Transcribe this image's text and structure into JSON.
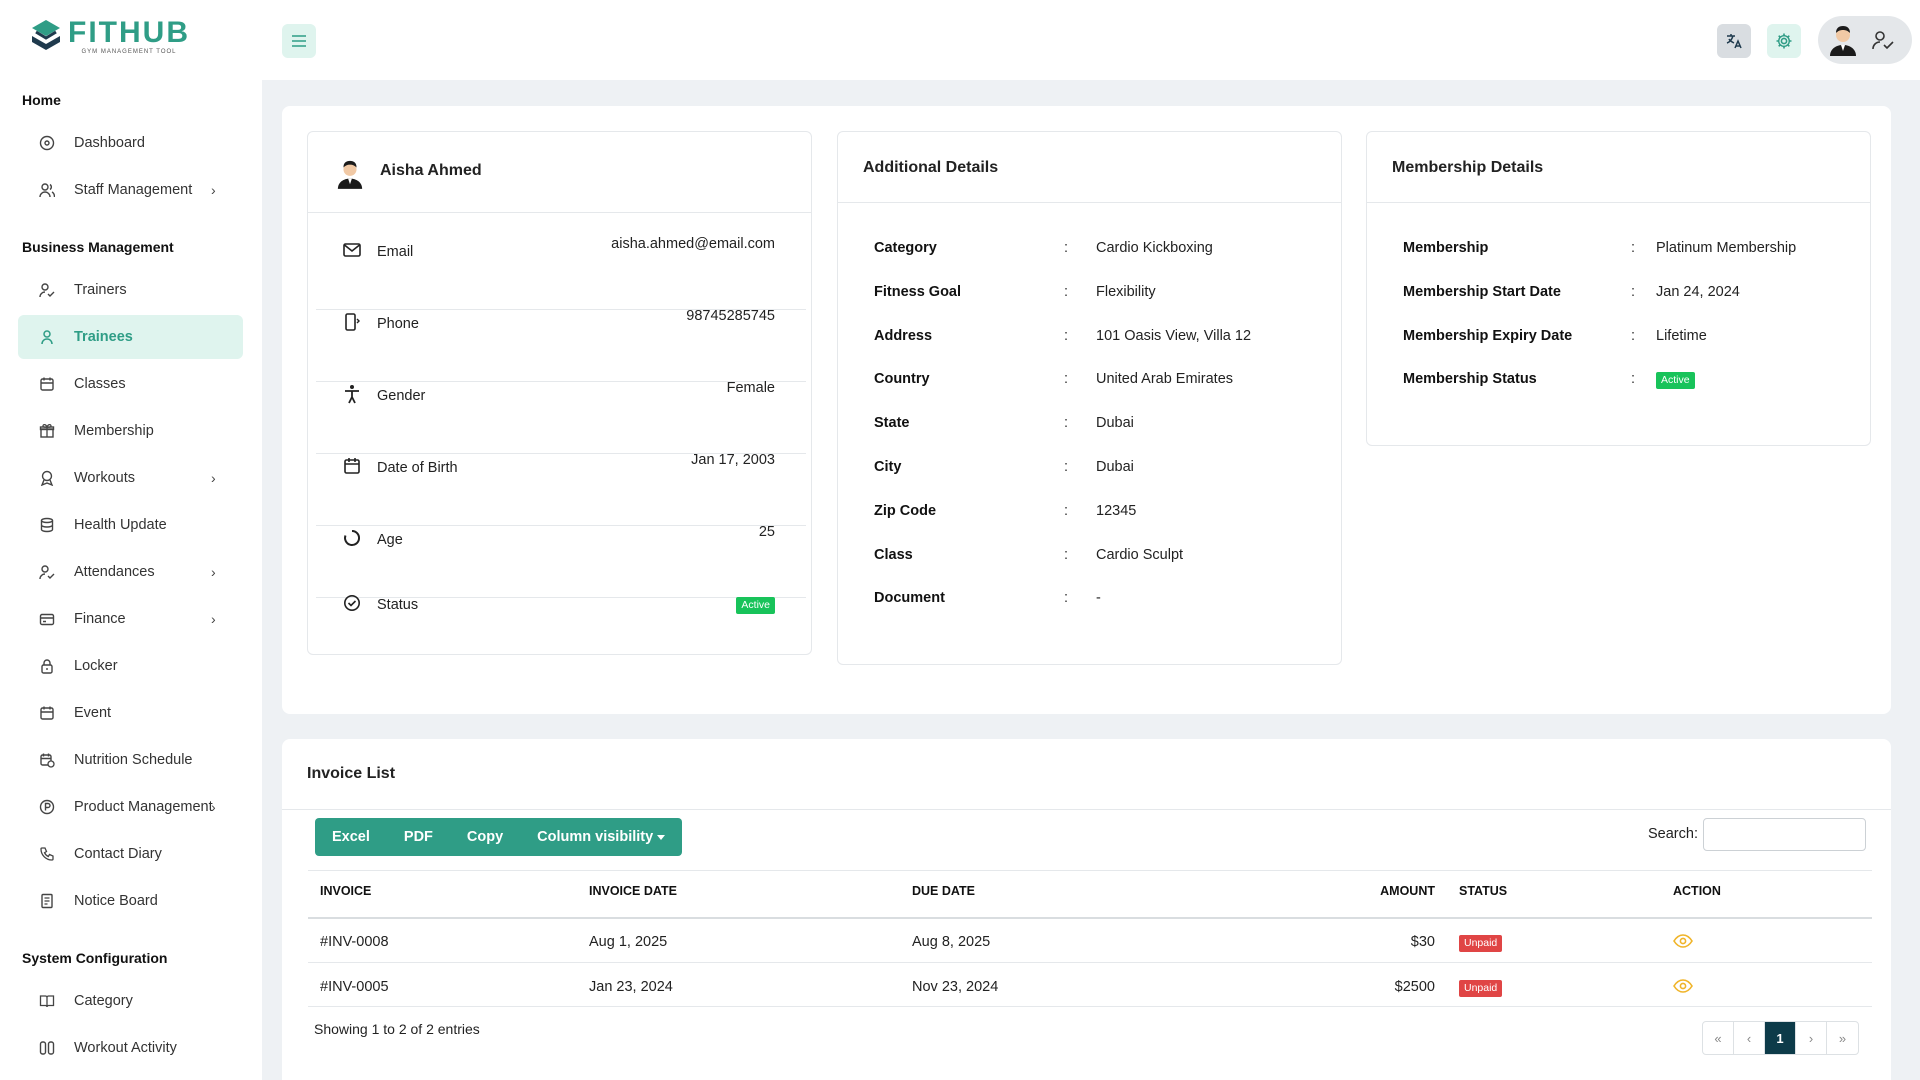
{
  "brand": {
    "name": "FITHUB",
    "tagline": "GYM MANAGEMENT TOOL",
    "accent": "#2f9d86"
  },
  "sidebar": {
    "sections": [
      {
        "title": "Home"
      },
      {
        "title": "Business Management"
      },
      {
        "title": "System Configuration"
      }
    ],
    "items": [
      {
        "label": "Dashboard",
        "icon": "dashboard-icon"
      },
      {
        "label": "Staff Management",
        "icon": "staff-icon",
        "chevron": "›"
      },
      {
        "label": "Trainers",
        "icon": "trainer-icon"
      },
      {
        "label": "Trainees",
        "icon": "trainee-icon"
      },
      {
        "label": "Classes",
        "icon": "calendar-icon"
      },
      {
        "label": "Membership",
        "icon": "gift-icon"
      },
      {
        "label": "Workouts",
        "icon": "workout-icon",
        "chevron": "›"
      },
      {
        "label": "Health Update",
        "icon": "database-icon"
      },
      {
        "label": "Attendances",
        "icon": "attendance-icon",
        "chevron": "›"
      },
      {
        "label": "Finance",
        "icon": "wallet-icon",
        "chevron": "›"
      },
      {
        "label": "Locker",
        "icon": "lock-icon"
      },
      {
        "label": "Event",
        "icon": "calendar-icon"
      },
      {
        "label": "Nutrition Schedule",
        "icon": "calendar-clock-icon"
      },
      {
        "label": "Product Management",
        "icon": "product-icon",
        "chevron": "›"
      },
      {
        "label": "Contact Diary",
        "icon": "phone-icon"
      },
      {
        "label": "Notice Board",
        "icon": "notice-icon"
      },
      {
        "label": "Category",
        "icon": "book-icon"
      },
      {
        "label": "Workout Activity",
        "icon": "activity-icon"
      }
    ]
  },
  "profile": {
    "name": "Aisha Ahmed",
    "rows": [
      {
        "label": "Email",
        "value": "aisha.ahmed@email.com"
      },
      {
        "label": "Phone",
        "value": "98745285745"
      },
      {
        "label": "Gender",
        "value": "Female"
      },
      {
        "label": "Date of Birth",
        "value": "Jan 17, 2003"
      },
      {
        "label": "Age",
        "value": "25"
      },
      {
        "label": "Status",
        "value": "Active"
      }
    ]
  },
  "additional": {
    "title": "Additional Details",
    "rows": [
      {
        "label": "Category",
        "value": "Cardio Kickboxing"
      },
      {
        "label": "Fitness Goal",
        "value": "Flexibility"
      },
      {
        "label": "Address",
        "value": "101 Oasis View, Villa 12"
      },
      {
        "label": "Country",
        "value": "United Arab Emirates"
      },
      {
        "label": "State",
        "value": "Dubai"
      },
      {
        "label": "City",
        "value": "Dubai"
      },
      {
        "label": "Zip Code",
        "value": "12345"
      },
      {
        "label": "Class",
        "value": "Cardio Sculpt"
      },
      {
        "label": "Document",
        "value": "-"
      }
    ]
  },
  "membership": {
    "title": "Membership Details",
    "rows": [
      {
        "label": "Membership",
        "value": "Platinum Membership"
      },
      {
        "label": "Membership Start Date",
        "value": "Jan 24, 2024"
      },
      {
        "label": "Membership Expiry Date",
        "value": "Lifetime"
      },
      {
        "label": "Membership Status",
        "value": "Active"
      }
    ]
  },
  "colon": ":",
  "invoices": {
    "title": "Invoice List",
    "buttons": [
      "Excel",
      "PDF",
      "Copy",
      "Column visibility"
    ],
    "search_label": "Search:",
    "columns": [
      "INVOICE",
      "INVOICE DATE",
      "DUE DATE",
      "AMOUNT",
      "STATUS",
      "ACTION"
    ],
    "rows": [
      {
        "invoice": "#INV-0008",
        "date": "Aug 1, 2025",
        "due": "Aug 8, 2025",
        "amount": "$30",
        "status": "Unpaid"
      },
      {
        "invoice": "#INV-0005",
        "date": "Jan 23, 2024",
        "due": "Nov 23, 2024",
        "amount": "$2500",
        "status": "Unpaid"
      }
    ],
    "footer": "Showing 1 to 2 of 2 entries",
    "pager": {
      "first": "«",
      "prev": "‹",
      "current": "1",
      "next": "›",
      "last": "»"
    }
  }
}
